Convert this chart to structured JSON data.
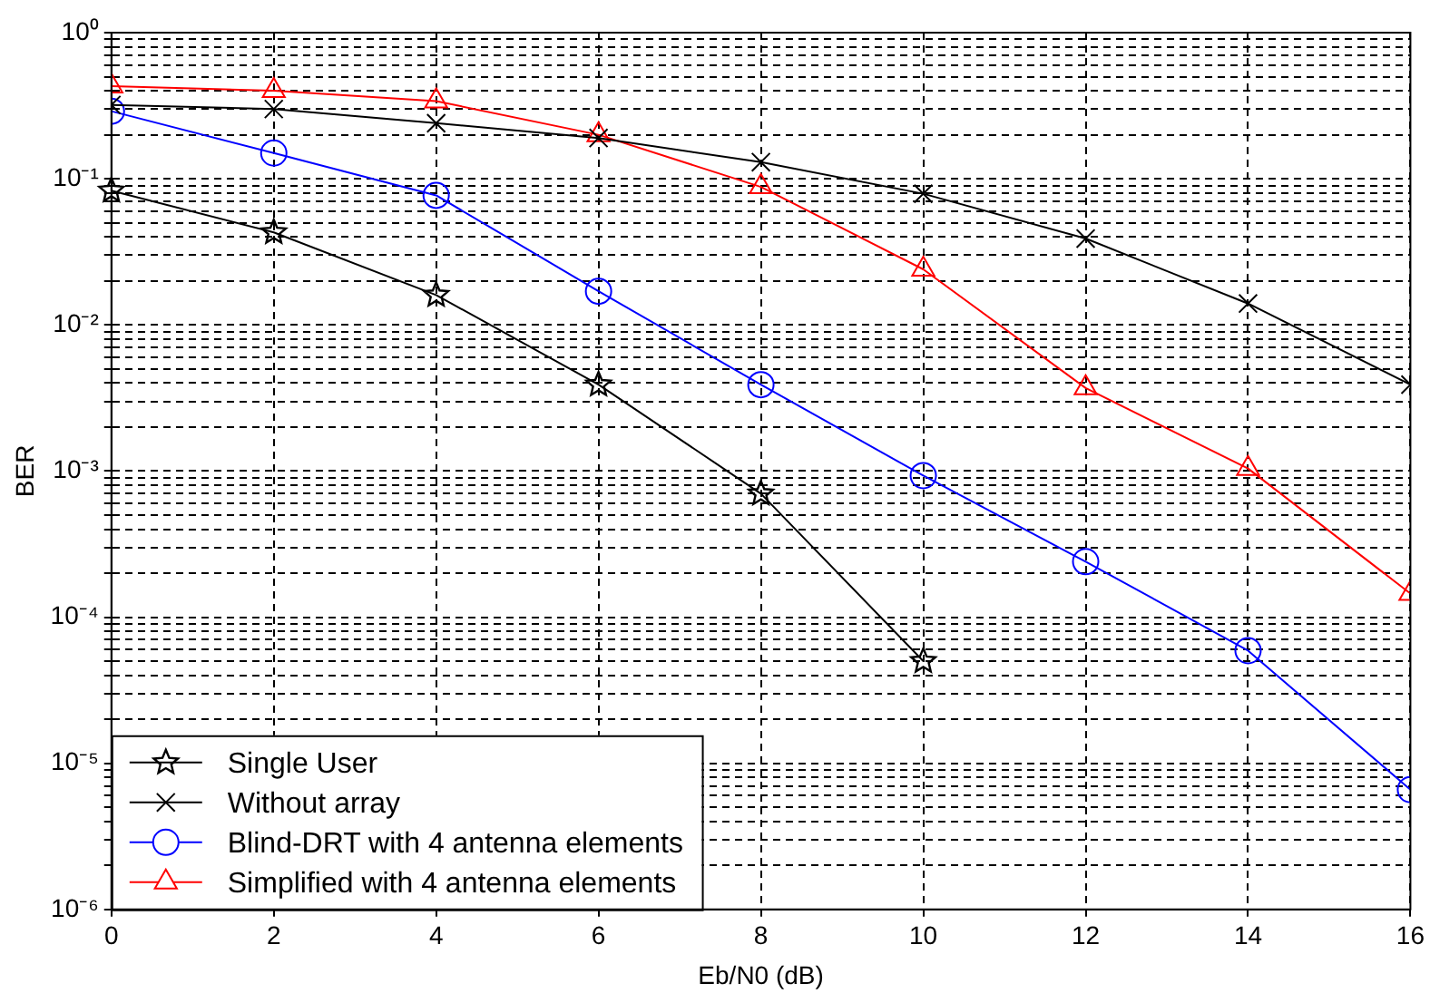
{
  "chart_data": {
    "type": "line",
    "xlabel": "Eb/N0 (dB)",
    "ylabel": "BER",
    "x": [
      0,
      2,
      4,
      6,
      8,
      10,
      12,
      14,
      16
    ],
    "series": [
      {
        "name": "Single User",
        "color": "#000000",
        "marker": "star",
        "values": [
          0.083,
          0.043,
          0.016,
          0.0039,
          0.0007,
          5e-05,
          null,
          null,
          null
        ]
      },
      {
        "name": "Without array",
        "color": "#000000",
        "marker": "cross",
        "values": [
          0.32,
          0.3,
          0.24,
          0.19,
          0.13,
          0.079,
          0.039,
          0.014,
          0.0039
        ]
      },
      {
        "name": "Blind-DRT with 4 antenna elements",
        "color": "#0000ff",
        "marker": "circle",
        "values": [
          0.29,
          0.15,
          0.077,
          0.017,
          0.0039,
          0.00093,
          0.00024,
          5.9e-05,
          6.6e-06
        ]
      },
      {
        "name": "Simplified with 4 antenna elements",
        "color": "#ff0000",
        "marker": "triangle",
        "values": [
          0.43,
          0.4,
          0.34,
          0.2,
          0.088,
          0.024,
          0.0037,
          0.00104,
          0.000145
        ]
      }
    ],
    "log": "y",
    "grid": true,
    "legend": "bottom left",
    "line_style": "solid",
    "xlim": [
      0,
      16
    ],
    "xticks": [
      0,
      2,
      4,
      6,
      8,
      10,
      12,
      14,
      16
    ],
    "ylim": [
      1e-06,
      1
    ],
    "yticks": [
      {
        "value": 1e-06,
        "label": "10⁻⁶"
      },
      {
        "value": 2e-06,
        "label": null
      },
      {
        "value": 3e-06,
        "label": null
      },
      {
        "value": 4e-06,
        "label": null
      },
      {
        "value": 5e-06,
        "label": null
      },
      {
        "value": 6e-06,
        "label": null
      },
      {
        "value": 7e-06,
        "label": null
      },
      {
        "value": 8e-06,
        "label": null
      },
      {
        "value": 9e-06,
        "label": null
      },
      {
        "value": 1e-05,
        "label": "10⁻⁵"
      },
      {
        "value": 2e-05,
        "label": null
      },
      {
        "value": 3e-05,
        "label": null
      },
      {
        "value": 4e-05,
        "label": null
      },
      {
        "value": 5e-05,
        "label": null
      },
      {
        "value": 6e-05,
        "label": null
      },
      {
        "value": 7e-05,
        "label": null
      },
      {
        "value": 8e-05,
        "label": null
      },
      {
        "value": 9e-05,
        "label": null
      },
      {
        "value": 0.0001,
        "label": "10⁻⁴"
      },
      {
        "value": 0.0002,
        "label": null
      },
      {
        "value": 0.0003,
        "label": null
      },
      {
        "value": 0.0004,
        "label": null
      },
      {
        "value": 0.0005,
        "label": null
      },
      {
        "value": 0.0006,
        "label": null
      },
      {
        "value": 0.0007,
        "label": null
      },
      {
        "value": 0.0008,
        "label": null
      },
      {
        "value": 0.0009,
        "label": null
      },
      {
        "value": 0.001,
        "label": "10⁻³"
      },
      {
        "value": 0.002,
        "label": null
      },
      {
        "value": 0.003,
        "label": null
      },
      {
        "value": 0.004,
        "label": null
      },
      {
        "value": 0.005,
        "label": null
      },
      {
        "value": 0.006,
        "label": null
      },
      {
        "value": 0.007,
        "label": null
      },
      {
        "value": 0.008,
        "label": null
      },
      {
        "value": 0.009,
        "label": null
      },
      {
        "value": 0.01,
        "label": "10⁻²"
      },
      {
        "value": 0.02,
        "label": null
      },
      {
        "value": 0.03,
        "label": null
      },
      {
        "value": 0.04,
        "label": null
      },
      {
        "value": 0.05,
        "label": null
      },
      {
        "value": 0.06,
        "label": null
      },
      {
        "value": 0.07,
        "label": null
      },
      {
        "value": 0.08,
        "label": null
      },
      {
        "value": 0.09,
        "label": null
      },
      {
        "value": 0.1,
        "label": "10⁻¹"
      },
      {
        "value": 0.2,
        "label": null
      },
      {
        "value": 0.3,
        "label": null
      },
      {
        "value": 0.4,
        "label": null
      },
      {
        "value": 0.5,
        "label": null
      },
      {
        "value": 0.6,
        "label": null
      },
      {
        "value": 0.7,
        "label": null
      },
      {
        "value": 0.8,
        "label": null
      },
      {
        "value": 0.9,
        "label": null
      },
      {
        "value": 1,
        "label": "10⁰"
      }
    ]
  }
}
